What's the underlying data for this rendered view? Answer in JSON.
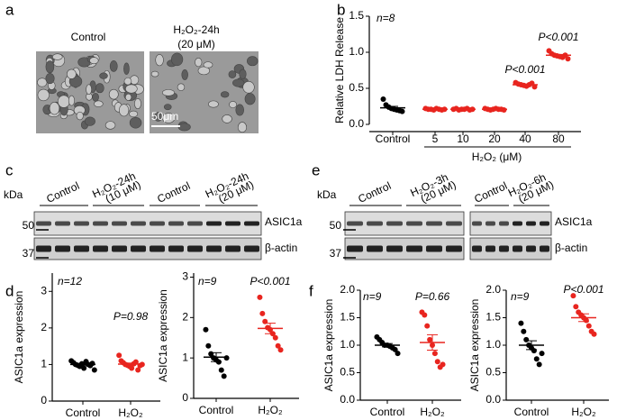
{
  "figure": {
    "panels": [
      "a",
      "b",
      "c",
      "d",
      "e",
      "f"
    ],
    "a": {
      "labels": [
        "Control",
        "H₂O₂-24h",
        "(20 μM)"
      ],
      "scale_bar": "50μm"
    },
    "c": {
      "groups": [
        [
          "Control"
        ],
        [
          "H₂O₂-24h",
          "(10 μM)"
        ],
        [
          "Control"
        ],
        [
          "H₂O₂-24h",
          "(20 μM)"
        ]
      ],
      "kda": "kDa",
      "markers": [
        50,
        37
      ],
      "bands": [
        "ASIC1a",
        "β-actin"
      ]
    },
    "e": {
      "groups": [
        [
          "Control"
        ],
        [
          "H₂O₂-3h",
          "(20 μM)"
        ],
        [
          "Control"
        ],
        [
          "H₂O₂-6h",
          "(20 μM)"
        ]
      ],
      "kda": "kDa",
      "markers": [
        50,
        37
      ],
      "bands": [
        "ASIC1a",
        "β-actin"
      ]
    }
  },
  "chart_data": [
    {
      "type": "dot",
      "ylabel": "Relative LDH Release",
      "xlabel": "H₂O₂ (μM)",
      "categories": [
        "Control",
        "5",
        "10",
        "20",
        "40",
        "80"
      ],
      "groups": [
        {
          "color": "#000000",
          "points": [
            0.35,
            0.27,
            0.24,
            0.22,
            0.21,
            0.2,
            0.19,
            0.18
          ],
          "mean": 0.23,
          "sem": 0.02
        },
        {
          "color": "#e8251f",
          "points": [
            0.22,
            0.21,
            0.21,
            0.2,
            0.22,
            0.21,
            0.2,
            0.21
          ],
          "mean": 0.21,
          "sem": 0.003
        },
        {
          "color": "#e8251f",
          "points": [
            0.21,
            0.22,
            0.2,
            0.21,
            0.21,
            0.22,
            0.2,
            0.21
          ],
          "mean": 0.21,
          "sem": 0.003
        },
        {
          "color": "#e8251f",
          "points": [
            0.22,
            0.21,
            0.2,
            0.21,
            0.22,
            0.21,
            0.21,
            0.2
          ],
          "mean": 0.21,
          "sem": 0.003
        },
        {
          "color": "#e8251f",
          "points": [
            0.58,
            0.56,
            0.55,
            0.54,
            0.53,
            0.55,
            0.57,
            0.52
          ],
          "mean": 0.55,
          "sem": 0.01
        },
        {
          "color": "#e8251f",
          "points": [
            1.02,
            0.98,
            0.96,
            0.95,
            0.94,
            0.93,
            0.96,
            0.91
          ],
          "mean": 0.96,
          "sem": 0.01
        }
      ],
      "ylim": [
        0,
        1.5
      ],
      "yticks": [
        {
          "value": 0,
          "label": "0.0"
        },
        0.5,
        {
          "value": 1,
          "label": "1.0"
        },
        1.5
      ],
      "annotations": [
        "n=8",
        "P<0.001",
        "P<0.001"
      ]
    },
    {
      "type": "dot",
      "ylabel": "ASIC1a expression",
      "categories": [
        "Control",
        "H₂O₂"
      ],
      "groups": [
        {
          "color": "#000000",
          "points": [
            1.1,
            1.05,
            1.0,
            0.98,
            0.95,
            1.02,
            0.9,
            1.08,
            1.0,
            0.97,
            1.03,
            0.85
          ],
          "mean": 1.0,
          "sem": 0.02
        },
        {
          "color": "#e8251f",
          "points": [
            1.25,
            1.1,
            1.05,
            1.0,
            0.98,
            0.95,
            0.9,
            1.02,
            1.07,
            0.85,
            0.97,
            1.0
          ],
          "mean": 1.01,
          "sem": 0.03
        }
      ],
      "ylim": [
        0,
        3.5
      ],
      "yticks": [
        0,
        1,
        2,
        3
      ],
      "annotations": [
        "n=12",
        "P=0.98"
      ]
    },
    {
      "type": "dot",
      "ylabel": "ASIC1a expression",
      "categories": [
        "Control",
        "H₂O₂"
      ],
      "groups": [
        {
          "color": "#000000",
          "points": [
            1.7,
            1.3,
            1.1,
            1.0,
            0.95,
            0.9,
            0.7,
            0.55,
            1.0
          ],
          "mean": 1.02,
          "sem": 0.11
        },
        {
          "color": "#e8251f",
          "points": [
            2.5,
            2.1,
            1.9,
            1.75,
            1.7,
            1.6,
            1.5,
            1.3,
            1.2
          ],
          "mean": 1.73,
          "sem": 0.13
        }
      ],
      "ylim": [
        0,
        3.1
      ],
      "yticks": [
        0,
        1,
        2,
        3
      ],
      "annotations": [
        "n=9",
        "P<0.001"
      ]
    },
    {
      "type": "dot",
      "ylabel": "ASIC1a expression",
      "categories": [
        "Control",
        "H₂O₂"
      ],
      "groups": [
        {
          "color": "#000000",
          "points": [
            1.15,
            1.1,
            1.05,
            1.0,
            1.0,
            0.98,
            0.95,
            0.92,
            0.85
          ],
          "mean": 1.0,
          "sem": 0.03
        },
        {
          "color": "#e8251f",
          "points": [
            1.6,
            1.55,
            1.35,
            1.1,
            1.0,
            0.85,
            0.7,
            0.6,
            0.65
          ],
          "mean": 1.05,
          "sem": 0.14
        }
      ],
      "ylim": [
        0,
        2
      ],
      "yticks": [
        {
          "value": 0,
          "label": "0.0"
        },
        0.5,
        {
          "value": 1,
          "label": "1.0"
        },
        1.5,
        {
          "value": 2,
          "label": "2.0"
        }
      ],
      "annotations": [
        "n=9",
        "P=0.66"
      ]
    },
    {
      "type": "dot",
      "ylabel": "ASIC1a expression",
      "categories": [
        "Control",
        "H₂O₂"
      ],
      "groups": [
        {
          "color": "#000000",
          "points": [
            1.4,
            1.25,
            1.1,
            1.0,
            0.95,
            0.9,
            0.75,
            0.65,
            0.85
          ],
          "mean": 1.0,
          "sem": 0.08
        },
        {
          "color": "#e8251f",
          "points": [
            1.9,
            1.7,
            1.6,
            1.55,
            1.5,
            1.45,
            1.35,
            1.25,
            1.2
          ],
          "mean": 1.5,
          "sem": 0.07
        }
      ],
      "ylim": [
        0,
        2
      ],
      "yticks": [
        {
          "value": 0,
          "label": "0.0"
        },
        0.5,
        {
          "value": 1,
          "label": "1.0"
        },
        1.5,
        {
          "value": 2,
          "label": "2.0"
        }
      ],
      "annotations": [
        "n=9",
        "P<0.001"
      ]
    }
  ]
}
